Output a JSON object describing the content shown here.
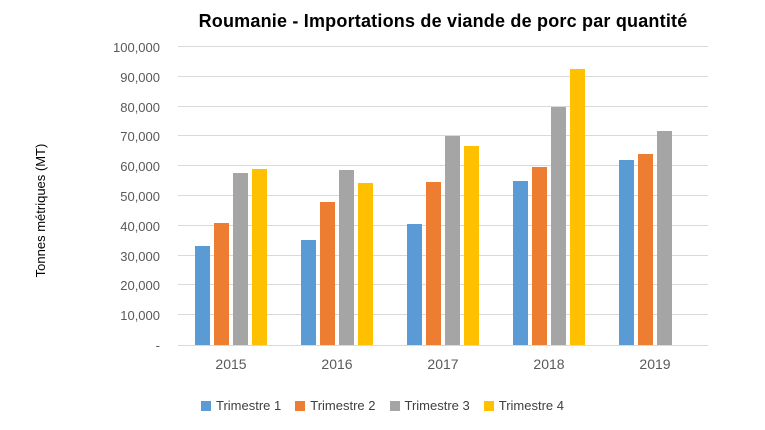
{
  "chart_data": {
    "type": "bar",
    "title": "Roumanie - Importations de viande de porc par quantité",
    "ylabel": "Tonnes métriques (MT)",
    "xlabel": "",
    "categories": [
      "2015",
      "2016",
      "2017",
      "2018",
      "2019"
    ],
    "series": [
      {
        "name": "Trimestre 1",
        "color": "#5B9BD5",
        "values": [
          33300,
          35200,
          40600,
          55200,
          62000
        ]
      },
      {
        "name": "Trimestre 2",
        "color": "#ED7D31",
        "values": [
          41100,
          47900,
          54700,
          59600,
          64100
        ]
      },
      {
        "name": "Trimestre 3",
        "color": "#A5A5A5",
        "values": [
          57800,
          58600,
          70300,
          79700,
          71900
        ]
      },
      {
        "name": "Trimestre 4",
        "color": "#FFC000",
        "values": [
          59000,
          54200,
          66800,
          92600,
          null
        ]
      }
    ],
    "ylim": [
      0,
      100000
    ],
    "ytick_step": 10000,
    "ytick_labels": [
      "-",
      "10,000",
      "20,000",
      "30,000",
      "40,000",
      "50,000",
      "60,000",
      "70,000",
      "80,000",
      "90,000",
      "100,000"
    ],
    "grid": true,
    "legend_position": "bottom",
    "colors": {
      "gridline": "#d9d9d9",
      "axis_line": "#d9d9d9",
      "tick_text": "#595959",
      "title_text": "#000000"
    }
  }
}
